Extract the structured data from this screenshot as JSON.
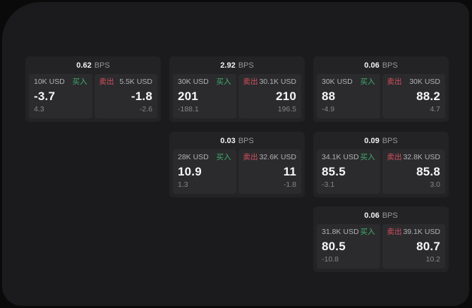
{
  "labels": {
    "bps": "BPS",
    "buy": "买入",
    "sell": "卖出"
  },
  "colors": {
    "background": "#0a0a0a",
    "panel": "#1b1b1d",
    "card": "#232325",
    "tile": "#2b2b2d",
    "buy_green": "#3fae71",
    "sell_red": "#d44f5e",
    "text_primary": "#f6f6f8",
    "text_muted": "#87878b"
  },
  "cards": [
    {
      "bps": "0.62",
      "buy": {
        "amount": "10K USD",
        "price": "-3.7",
        "delta": "4.3"
      },
      "sell": {
        "amount": "5.5K USD",
        "price": "-1.8",
        "delta": "-2.6"
      }
    },
    {
      "bps": "2.92",
      "buy": {
        "amount": "30K USD",
        "price": "201",
        "delta": "-188.1"
      },
      "sell": {
        "amount": "30.1K USD",
        "price": "210",
        "delta": "196.5"
      }
    },
    {
      "bps": "0.06",
      "buy": {
        "amount": "30K USD",
        "price": "88",
        "delta": "-4.9"
      },
      "sell": {
        "amount": "30K USD",
        "price": "88.2",
        "delta": "4.7"
      }
    },
    {
      "bps": "0.03",
      "buy": {
        "amount": "28K USD",
        "price": "10.9",
        "delta": "1.3"
      },
      "sell": {
        "amount": "32.6K USD",
        "price": "11",
        "delta": "-1.8"
      }
    },
    {
      "bps": "0.09",
      "buy": {
        "amount": "34.1K USD",
        "price": "85.5",
        "delta": "-3.1"
      },
      "sell": {
        "amount": "32.8K USD",
        "price": "85.8",
        "delta": "3.0"
      }
    },
    {
      "bps": "0.06",
      "buy": {
        "amount": "31.8K USD",
        "price": "80.5",
        "delta": "-10.8"
      },
      "sell": {
        "amount": "39.1K USD",
        "price": "80.7",
        "delta": "10.2"
      }
    }
  ]
}
